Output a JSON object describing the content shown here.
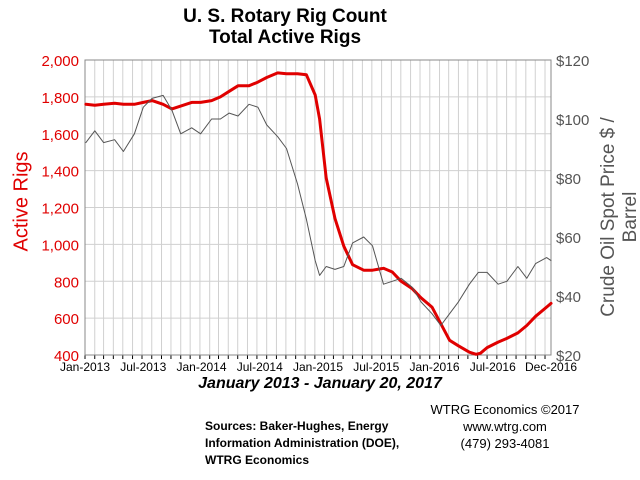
{
  "chart_data": {
    "type": "line",
    "title": "U. S. Rotary Rig Count",
    "subtitle": "Total Active Rigs",
    "period": "January 2013 - January 20, 2017",
    "ylabel_left": "Active Rigs",
    "ylabel_right": "Crude Oil Spot Price $ / Barrel",
    "ylim_left": [
      400,
      2000
    ],
    "ylim_right": [
      20,
      120
    ],
    "yticks_left": [
      "400",
      "600",
      "800",
      "1,000",
      "1,200",
      "1,400",
      "1,600",
      "1,800",
      "2,000"
    ],
    "yticks_right": [
      "$20",
      "$40",
      "$60",
      "$80",
      "$100",
      "$120"
    ],
    "xlim": [
      "2013-01-01",
      "2017-01-20"
    ],
    "xticks": [
      "Jan-2013",
      "Jul-2013",
      "Jan-2014",
      "Jul-2014",
      "Jan-2015",
      "Jul-2015",
      "Jan-2016",
      "Jul-2016",
      "Dec-2016"
    ],
    "grid": true,
    "series": [
      {
        "name": "Active Rigs",
        "axis": "left",
        "color": "#e00000",
        "x": [
          "2013-01-04",
          "2013-02-01",
          "2013-03-01",
          "2013-04-05",
          "2013-05-03",
          "2013-06-07",
          "2013-07-05",
          "2013-08-02",
          "2013-09-06",
          "2013-10-04",
          "2013-11-01",
          "2013-12-06",
          "2014-01-03",
          "2014-02-07",
          "2014-03-07",
          "2014-04-04",
          "2014-05-02",
          "2014-06-06",
          "2014-07-04",
          "2014-08-01",
          "2014-09-05",
          "2014-10-03",
          "2014-11-07",
          "2014-12-05",
          "2015-01-02",
          "2015-01-16",
          "2015-02-06",
          "2015-03-06",
          "2015-04-03",
          "2015-05-01",
          "2015-06-05",
          "2015-07-03",
          "2015-08-07",
          "2015-09-04",
          "2015-10-02",
          "2015-11-06",
          "2015-12-04",
          "2016-01-08",
          "2016-02-05",
          "2016-03-04",
          "2016-04-01",
          "2016-05-06",
          "2016-05-27",
          "2016-06-10",
          "2016-07-01",
          "2016-08-05",
          "2016-09-02",
          "2016-10-07",
          "2016-11-04",
          "2016-12-02",
          "2017-01-06",
          "2017-01-20"
        ],
        "values": [
          1760,
          1755,
          1760,
          1765,
          1760,
          1760,
          1770,
          1780,
          1760,
          1735,
          1750,
          1770,
          1770,
          1780,
          1800,
          1830,
          1860,
          1860,
          1880,
          1905,
          1930,
          1925,
          1925,
          1920,
          1810,
          1680,
          1360,
          1140,
          990,
          890,
          860,
          860,
          870,
          850,
          800,
          760,
          710,
          660,
          570,
          480,
          450,
          415,
          404,
          410,
          440,
          470,
          490,
          520,
          560,
          610,
          660,
          680
        ]
      },
      {
        "name": "Crude Oil Spot Price",
        "axis": "right",
        "color": "#555555",
        "x": [
          "2013-01-04",
          "2013-02-01",
          "2013-03-01",
          "2013-04-05",
          "2013-05-03",
          "2013-06-07",
          "2013-07-05",
          "2013-08-02",
          "2013-09-06",
          "2013-10-04",
          "2013-11-01",
          "2013-12-06",
          "2014-01-03",
          "2014-02-07",
          "2014-03-07",
          "2014-04-04",
          "2014-05-02",
          "2014-06-06",
          "2014-07-04",
          "2014-08-01",
          "2014-09-05",
          "2014-10-03",
          "2014-11-07",
          "2014-12-05",
          "2015-01-02",
          "2015-01-16",
          "2015-02-06",
          "2015-03-06",
          "2015-04-03",
          "2015-05-01",
          "2015-06-05",
          "2015-07-03",
          "2015-08-07",
          "2015-09-04",
          "2015-10-02",
          "2015-11-06",
          "2015-12-04",
          "2016-01-08",
          "2016-02-05",
          "2016-03-04",
          "2016-04-01",
          "2016-05-06",
          "2016-06-03",
          "2016-07-01",
          "2016-08-05",
          "2016-09-02",
          "2016-10-07",
          "2016-11-04",
          "2016-12-02",
          "2017-01-06",
          "2017-01-20"
        ],
        "values": [
          92,
          96,
          92,
          93,
          89,
          95,
          104,
          107,
          108,
          103,
          95,
          97,
          95,
          100,
          100,
          102,
          101,
          105,
          104,
          98,
          94,
          90,
          78,
          66,
          52,
          47,
          50,
          49,
          50,
          58,
          60,
          57,
          44,
          45,
          46,
          43,
          38,
          34,
          30,
          34,
          38,
          44,
          48,
          48,
          44,
          45,
          50,
          46,
          51,
          53,
          52
        ]
      }
    ]
  },
  "footer": {
    "sources": [
      "Sources: Baker-Hughes, Energy",
      "Information Administration (DOE),",
      "WTRG Economics"
    ],
    "credit": [
      "WTRG Economics  ©2017",
      "www.wtrg.com",
      "(479) 293-4081"
    ]
  }
}
